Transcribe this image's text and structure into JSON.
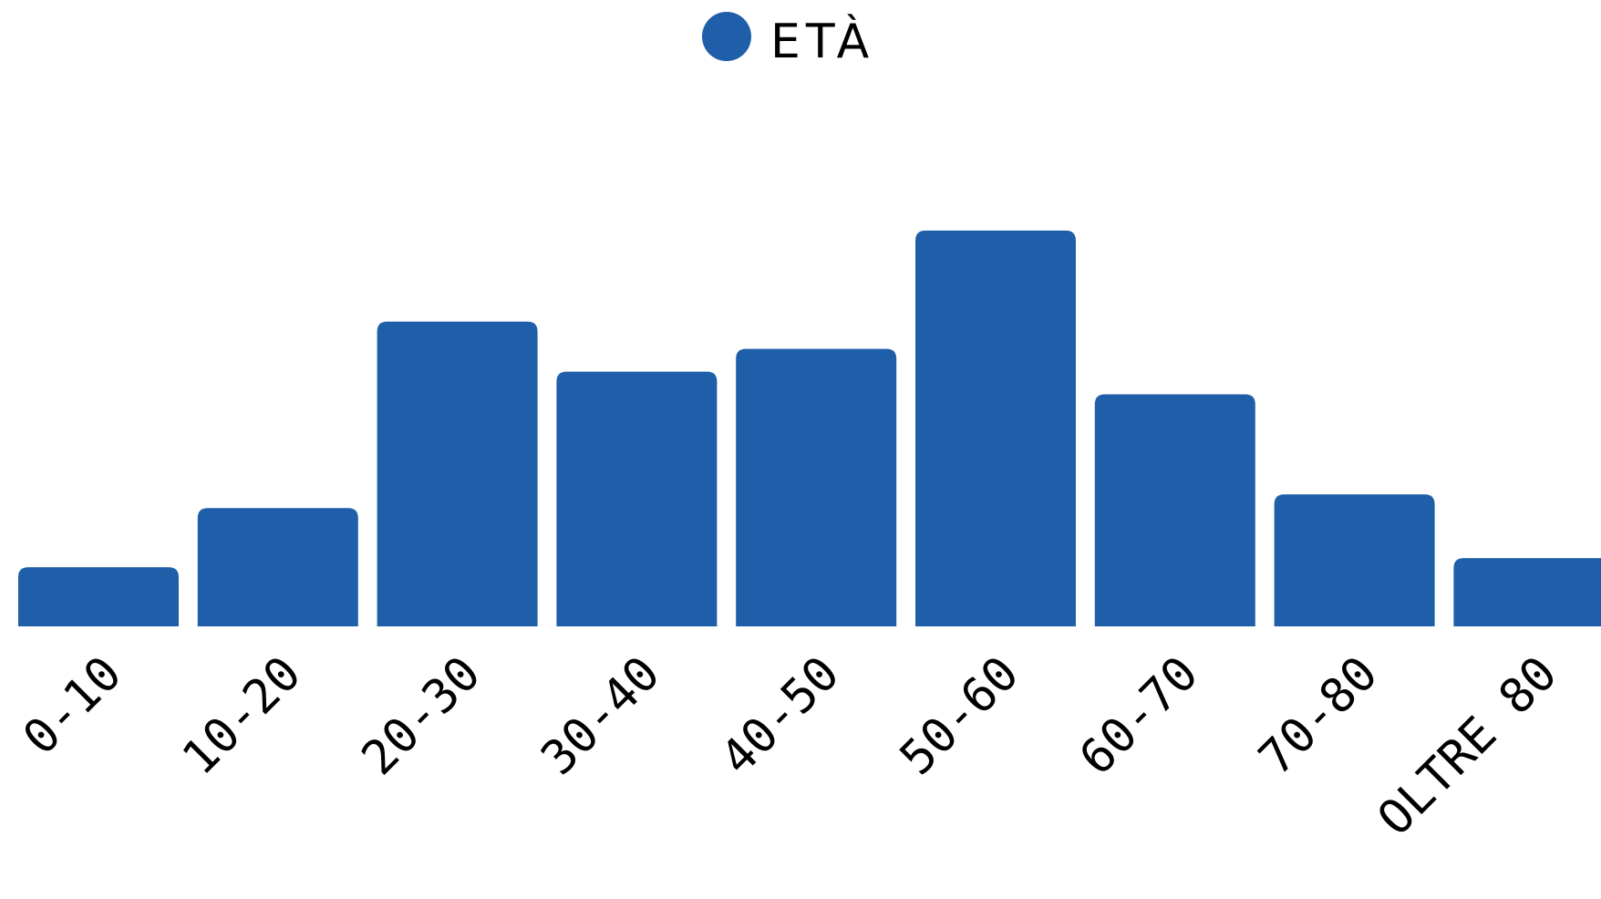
{
  "chart_data": {
    "type": "bar",
    "categories": [
      "0-10",
      "10-20",
      "20-30",
      "30-40",
      "40-50",
      "50-60",
      "60-70",
      "70-80",
      "OLTRE 80"
    ],
    "series": [
      {
        "name": "ETÀ",
        "values": [
          13,
          26,
          67,
          56,
          61,
          87,
          51,
          29,
          15
        ]
      }
    ],
    "ylim": [
      0,
      100
    ],
    "legend_position": "top-center",
    "grid": false,
    "colors": {
      "bar": "#1f5fa9",
      "text": "#000000"
    }
  }
}
